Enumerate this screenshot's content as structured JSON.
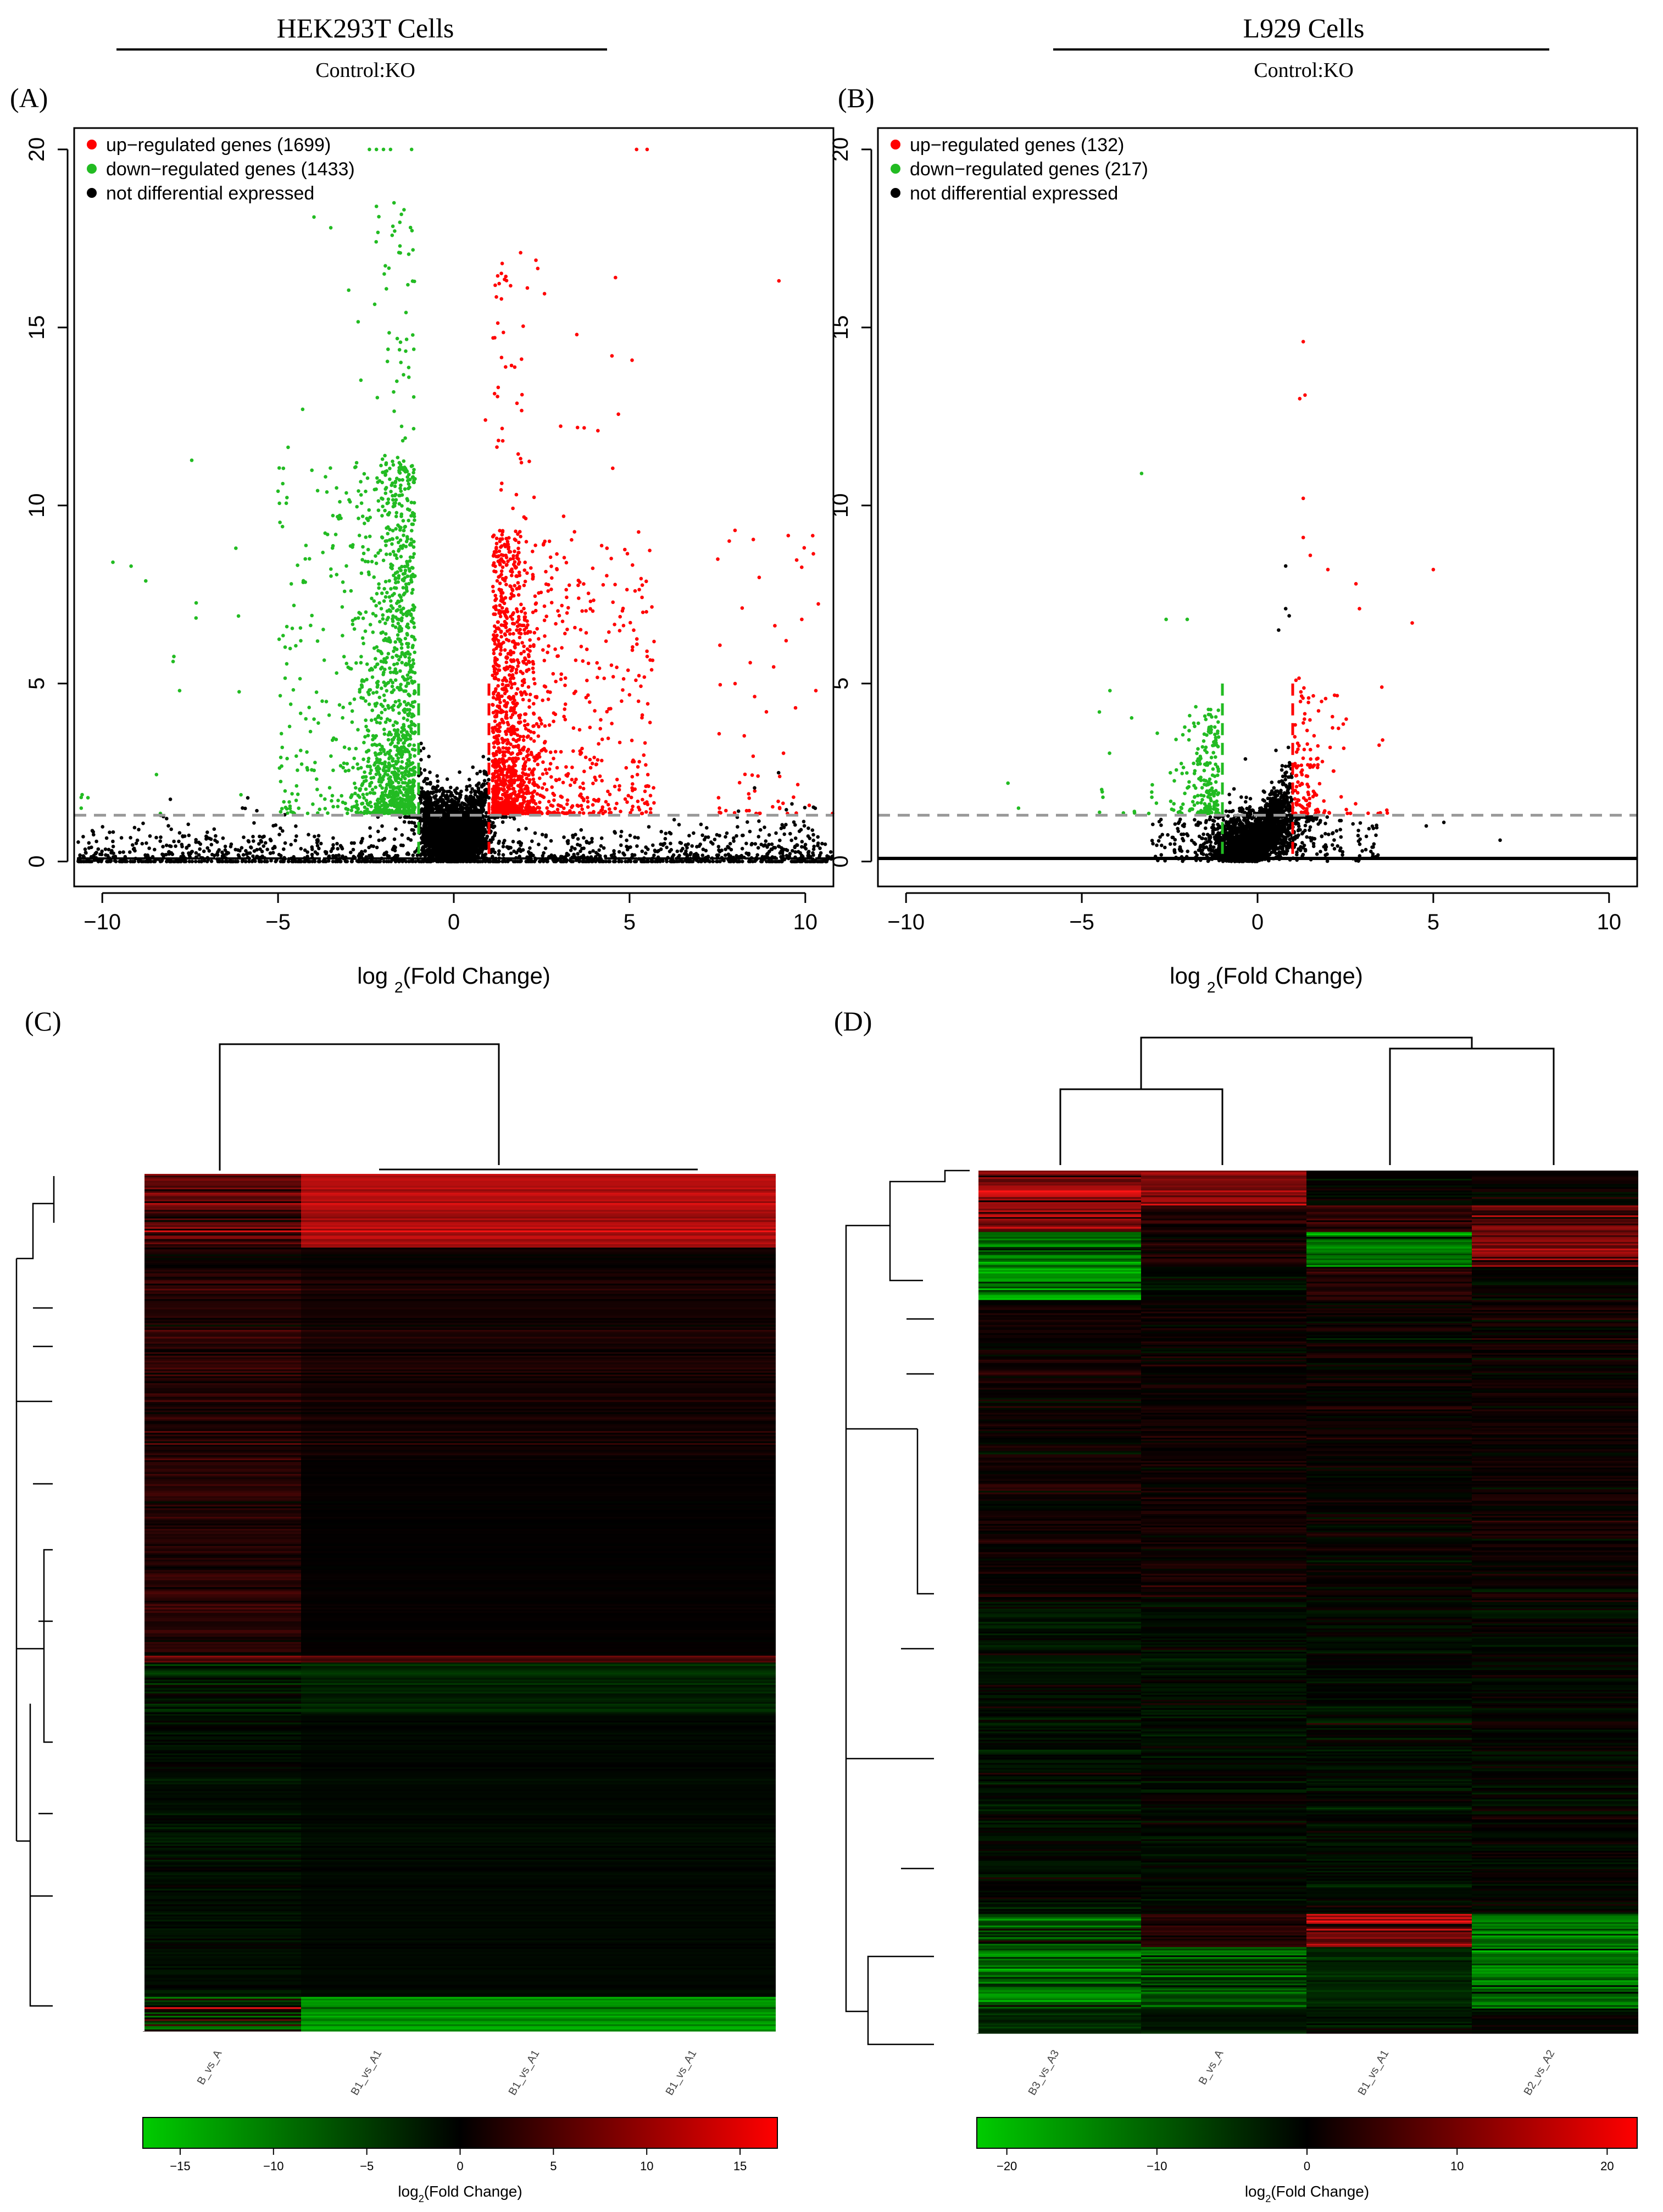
{
  "headers": [
    {
      "title": "HEK293T Cells",
      "subtitle": "Control:KO"
    },
    {
      "title": "L929 Cells",
      "subtitle": "Control:KO"
    }
  ],
  "colors": {
    "up": "#ff0000",
    "down": "#22bb22",
    "ns": "#000000",
    "threshold": "#999999"
  },
  "chart_data": [
    {
      "type": "scatter",
      "panel_label": "(A)",
      "xlabel": "log2(Fold Change)",
      "ylabel": "",
      "xlim": [
        -10.8,
        10.8
      ],
      "ylim": [
        -0.7,
        20.6
      ],
      "xticks": [
        -10,
        -5,
        0,
        5,
        10
      ],
      "yticks": [
        0,
        5,
        10,
        15,
        20
      ],
      "legend": [
        {
          "label": "up−regulated genes (1699)",
          "color": "#ff0000"
        },
        {
          "label": "down−regulated genes (1433)",
          "color": "#22bb22"
        },
        {
          "label": "not differential expressed",
          "color": "#000000"
        }
      ],
      "legend_position": "top-left",
      "thresholds": {
        "fc": 1,
        "y": 1.3
      },
      "series": [
        {
          "group": "up",
          "count": 1699
        },
        {
          "group": "down",
          "count": 1433
        }
      ]
    },
    {
      "type": "scatter",
      "panel_label": "(B)",
      "xlabel": "log2(Fold Change)",
      "ylabel": "",
      "xlim": [
        -10.8,
        10.8
      ],
      "ylim": [
        -0.7,
        20.6
      ],
      "xticks": [
        -10,
        -5,
        0,
        5,
        10
      ],
      "yticks": [
        0,
        5,
        10,
        15,
        20
      ],
      "legend": [
        {
          "label": "up−regulated genes (132)",
          "color": "#ff0000"
        },
        {
          "label": "down−regulated genes (217)",
          "color": "#22bb22"
        },
        {
          "label": "not differential expressed",
          "color": "#000000"
        }
      ],
      "legend_position": "top-left",
      "thresholds": {
        "fc": 1,
        "y": 1.3
      },
      "series": [
        {
          "group": "up",
          "count": 132
        },
        {
          "group": "down",
          "count": 217
        }
      ]
    },
    {
      "type": "heatmap",
      "panel_label": "(C)",
      "columns": [
        "B_vs_A",
        "B1_vs_A1",
        "B1_vs_A1",
        "B1_vs_A1"
      ],
      "colorbar": {
        "label": "log2(Fold Change)",
        "range": [
          -17,
          17
        ],
        "ticks": [
          -15,
          -10,
          -5,
          0,
          5,
          10,
          15
        ],
        "low": "#00cc00",
        "mid": "#000000",
        "high": "#ff0000"
      }
    },
    {
      "type": "heatmap",
      "panel_label": "(D)",
      "columns": [
        "B3_vs_A3",
        "B_vs_A",
        "B1_vs_A1",
        "B2_vs_A2"
      ],
      "colorbar": {
        "label": "log2(Fold Change)",
        "range": [
          -22,
          22
        ],
        "ticks": [
          -20,
          -10,
          0,
          10,
          20
        ],
        "low": "#00cc00",
        "mid": "#000000",
        "high": "#ff0000"
      }
    }
  ]
}
